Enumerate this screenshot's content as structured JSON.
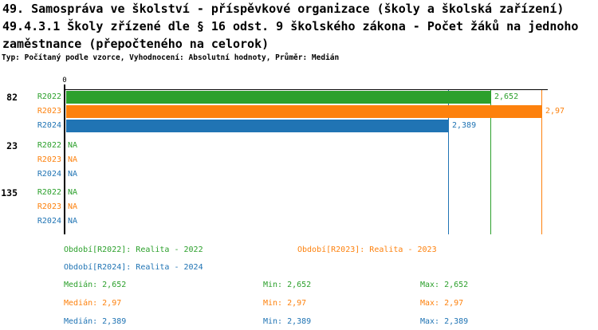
{
  "header": {
    "line1": "49. Samospráva ve školství - příspěvkové organizace (školy a školská zařízení)",
    "line2": "49.4.3.1 Školy zřízené dle § 16 odst. 9 školského zákona - Počet žáků na jednoho",
    "line3": "zaměstnance (přepočteného na celorok)",
    "meta": "Typ: Počítaný podle vzorce, Vyhodnocení: Absolutní hodnoty, Průměr: Medián"
  },
  "colors": {
    "r2022": "#2ca02c",
    "r2023": "#fd810d",
    "r2024": "#2074b4",
    "axis": "#000000",
    "background": "#ffffff"
  },
  "chart_data": {
    "type": "bar",
    "orientation": "horizontal",
    "axis": {
      "origin_label": "0",
      "min": 0,
      "max": 3.01,
      "grid": false
    },
    "series": [
      "R2022",
      "R2023",
      "R2024"
    ],
    "groups": [
      {
        "label": "82",
        "rows": [
          {
            "series": "R2022",
            "value": 2.652,
            "display": "2,652"
          },
          {
            "series": "R2023",
            "value": 2.97,
            "display": "2,97"
          },
          {
            "series": "R2024",
            "value": 2.389,
            "display": "2,389"
          }
        ]
      },
      {
        "label": "23",
        "rows": [
          {
            "series": "R2022",
            "value": null,
            "display": "NA"
          },
          {
            "series": "R2023",
            "value": null,
            "display": "NA"
          },
          {
            "series": "R2024",
            "value": null,
            "display": "NA"
          }
        ]
      },
      {
        "label": "135",
        "rows": [
          {
            "series": "R2022",
            "value": null,
            "display": "NA"
          },
          {
            "series": "R2023",
            "value": null,
            "display": "NA"
          },
          {
            "series": "R2024",
            "value": null,
            "display": "NA"
          }
        ]
      }
    ],
    "median_markers": [
      {
        "series": "R2022",
        "value": 2.652
      },
      {
        "series": "R2023",
        "value": 2.97
      },
      {
        "series": "R2024",
        "value": 2.389
      }
    ]
  },
  "legend": {
    "periods": [
      {
        "label": "Období[R2022]: Realita - 2022"
      },
      {
        "label": "Období[R2023]: Realita - 2023"
      },
      {
        "label": "Období[R2024]: Realita - 2024"
      }
    ],
    "stats": [
      {
        "median": "Medián: 2,652",
        "min": "Min: 2,652",
        "max": "Max: 2,652"
      },
      {
        "median": "Medián: 2,97",
        "min": "Min: 2,97",
        "max": "Max: 2,97"
      },
      {
        "median": "Medián: 2,389",
        "min": "Min: 2,389",
        "max": "Max: 2,389"
      }
    ]
  }
}
